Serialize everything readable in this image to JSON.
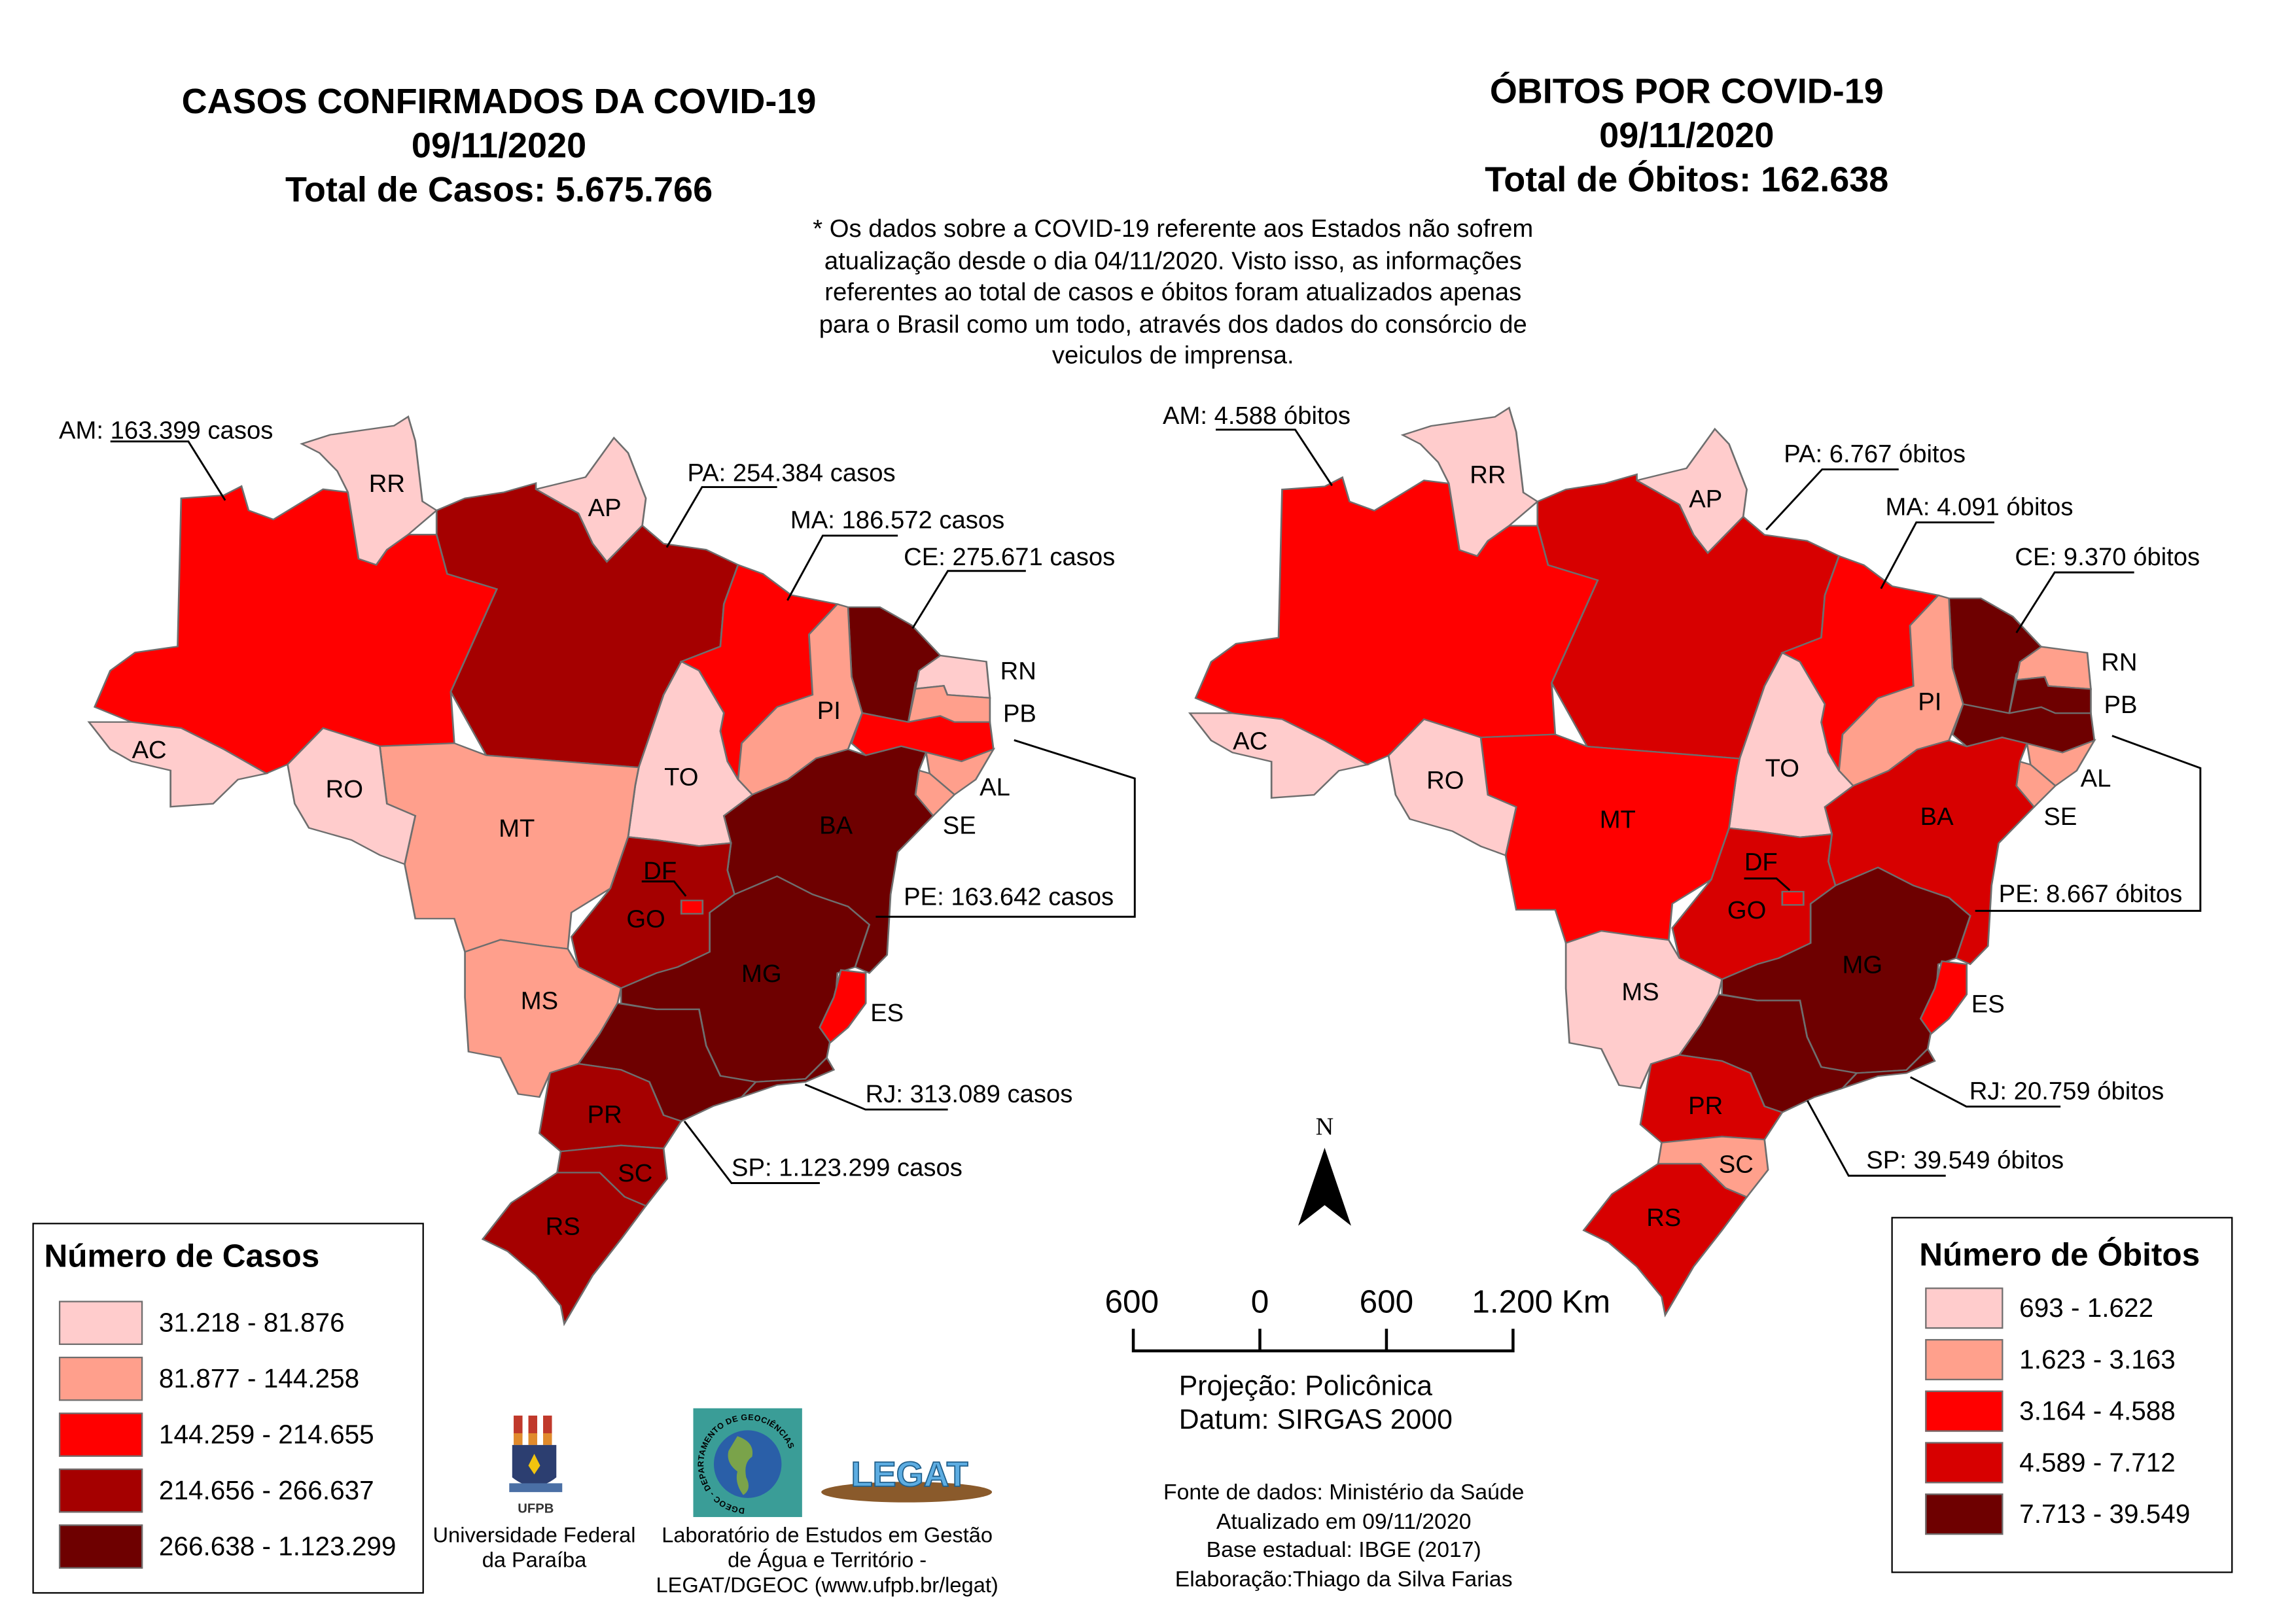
{
  "cases_map": {
    "title_lines": [
      "CASOS CONFIRMADOS DA COVID-19",
      "09/11/2020",
      "Total de Casos: 5.675.766"
    ],
    "legend": {
      "title": "Número de Casos",
      "classes": [
        {
          "label": "31.218 - 81.876",
          "color": "#ffcccc"
        },
        {
          "label": "81.877 - 144.258",
          "color": "#ff9f8c"
        },
        {
          "label": "144.259 - 214.655",
          "color": "#ff0000"
        },
        {
          "label": "214.656 - 266.637",
          "color": "#a50000"
        },
        {
          "label": "266.638 - 1.123.299",
          "color": "#6e0000"
        }
      ]
    },
    "state_class": {
      "AC": 0,
      "AM": 2,
      "RR": 0,
      "AP": 0,
      "PA": 3,
      "MA": 2,
      "CE": 4,
      "PI": 1,
      "RN": 0,
      "PB": 1,
      "PE": 2,
      "AL": 1,
      "SE": 1,
      "BA": 4,
      "TO": 0,
      "MT": 1,
      "RO": 0,
      "GO": 3,
      "DF": 2,
      "MS": 1,
      "MG": 4,
      "ES": 2,
      "RJ": 4,
      "SP": 4,
      "PR": 3,
      "SC": 3,
      "RS": 3
    },
    "callouts": {
      "AM": "AM: 163.399 casos",
      "PA": "PA: 254.384 casos",
      "MA": "MA: 186.572 casos",
      "CE": "CE: 275.671 casos",
      "PE": "PE: 163.642 casos",
      "RJ": "RJ: 313.089 casos",
      "SP": "SP: 1.123.299 casos"
    }
  },
  "deaths_map": {
    "title_lines": [
      "ÓBITOS POR COVID-19",
      "09/11/2020",
      "Total de Óbitos: 162.638"
    ],
    "legend": {
      "title": "Número de Óbitos",
      "classes": [
        {
          "label": "693 - 1.622",
          "color": "#ffcccc"
        },
        {
          "label": "1.623 - 3.163",
          "color": "#ffa08c"
        },
        {
          "label": "3.164 - 4.588",
          "color": "#ff0000"
        },
        {
          "label": "4.589 - 7.712",
          "color": "#d70000"
        },
        {
          "label": "7.713 - 39.549",
          "color": "#6e0000"
        }
      ]
    },
    "state_class": {
      "AC": 0,
      "AM": 2,
      "RR": 0,
      "AP": 0,
      "PA": 3,
      "MA": 2,
      "CE": 4,
      "PI": 1,
      "RN": 1,
      "PB": 4,
      "PE": 4,
      "AL": 1,
      "SE": 1,
      "BA": 3,
      "TO": 0,
      "MT": 2,
      "RO": 0,
      "GO": 3,
      "DF": 2,
      "MS": 0,
      "MG": 4,
      "ES": 2,
      "RJ": 4,
      "SP": 4,
      "PR": 3,
      "SC": 1,
      "RS": 3
    },
    "callouts": {
      "AM": "AM: 4.588 óbitos",
      "PA": "PA: 6.767 óbitos",
      "MA": "MA: 4.091 óbitos",
      "CE": "CE: 9.370 óbitos",
      "PE": "PE: 8.667 óbitos",
      "RJ": "RJ: 20.759 óbitos",
      "SP": "SP: 39.549 óbitos"
    }
  },
  "state_labels": [
    "RR",
    "AP",
    "AC",
    "RO",
    "MT",
    "TO",
    "PI",
    "BA",
    "GO",
    "DF",
    "MG",
    "MS",
    "ES",
    "PR",
    "SC",
    "RS",
    "RN",
    "PB",
    "AL",
    "SE"
  ],
  "note_lines": [
    "* Os dados sobre a COVID-19 referente aos Estados não sofrem",
    "atualização desde o dia 04/11/2020. Visto isso, as informações",
    "referentes ao total de casos e óbitos foram atualizados apenas",
    "para o Brasil como um todo, através dos dados do consórcio de",
    "veiculos de imprensa."
  ],
  "north_arrow": {
    "label": "N"
  },
  "scale_bar": {
    "ticks": [
      "600",
      "0",
      "600",
      "1.200 Km"
    ]
  },
  "projection": [
    "Projeção: Policônica",
    "Datum: SIRGAS 2000"
  ],
  "sources": [
    "Fonte de dados: Ministério da Saúde",
    "Atualizado em 09/11/2020",
    "Base estadual: IBGE (2017)",
    "Elaboração:Thiago da Silva Farias"
  ],
  "logos": {
    "ufpb": {
      "lettering": "UFPB",
      "caption": [
        "Universidade Federal",
        "da Paraíba"
      ]
    },
    "dgeoc": {
      "lettering": "DGEOC - DEPARTAMENTO DE GEOCIÊNCIAS"
    },
    "legat": {
      "lettering": "LEGAT"
    },
    "lab_caption": [
      "Laboratório de Estudos em Gestão",
      "de Água e Território -",
      "LEGAT/DGEOC (www.ufpb.br/legat)"
    ]
  }
}
